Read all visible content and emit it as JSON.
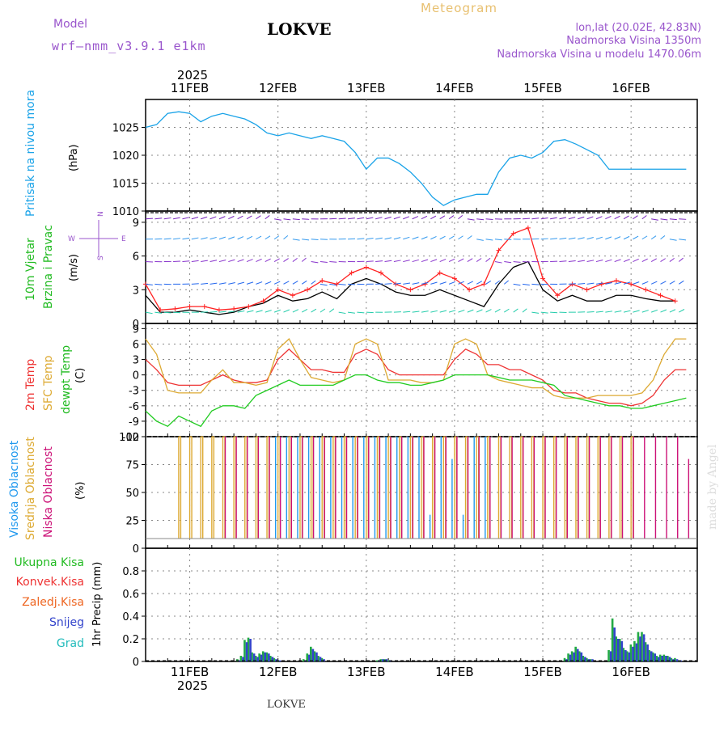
{
  "header": {
    "model_label": "Model",
    "model_name": "wrf—nmm_v3.9.1  e1km",
    "station": "LOKVE",
    "meteogram": "Meteogram",
    "lonlat": "lon,lat (20.02E, 42.83N)",
    "elev": "Nadmorska Visina 1350m",
    "elev_model": "Nadmorska Visina u modelu 1470.06m",
    "watermark": "made by Angel",
    "footer": "LOKVE"
  },
  "colors": {
    "pressure": "#1aa3e8",
    "wind_speed": "#000000",
    "gust": "#ff2222",
    "t2m": "#ee3333",
    "sfc": "#ddaa33",
    "dew": "#22cc22",
    "cloud_high": "#2299ee",
    "cloud_mid": "#ddaa33",
    "cloud_low": "#cc1177",
    "rain_total": "#22aa44",
    "rain_snow": "#3344cc",
    "grid": "#888888"
  },
  "chart_data": [
    {
      "type": "line",
      "id": "pressure",
      "ylabel": "Pritisak na nivou mora",
      "unit": "(hPa)",
      "ylim": [
        1010,
        1030
      ],
      "yticks": [
        "1010",
        "1015",
        "1020",
        "1025"
      ],
      "ytick_values": [
        1010,
        1015,
        1020,
        1025
      ],
      "x_hours": [
        0,
        3,
        6,
        9,
        12,
        15,
        18,
        21,
        24,
        27,
        30,
        33,
        36,
        39,
        42,
        45,
        48,
        51,
        54,
        57,
        60,
        63,
        66,
        69,
        72,
        75,
        78,
        81,
        84,
        87,
        90,
        93,
        96,
        99,
        102,
        105,
        108,
        111,
        114,
        117,
        120,
        123,
        126,
        129,
        132,
        135,
        138,
        141,
        144,
        147
      ],
      "series": [
        {
          "name": "Pritisak na nivou mora",
          "values": [
            1025.0,
            1025.5,
            1027.5,
            1027.8,
            1027.5,
            1026.0,
            1027.0,
            1027.5,
            1027.0,
            1026.5,
            1025.5,
            1024.0,
            1023.5,
            1024.0,
            1023.5,
            1023.0,
            1023.5,
            1023.0,
            1022.5,
            1020.5,
            1017.5,
            1019.5,
            1019.5,
            1018.5,
            1017.0,
            1015.0,
            1012.5,
            1011.0,
            1012.0,
            1012.5,
            1013.0,
            1013.0,
            1017.0,
            1019.5,
            1020.0,
            1019.5,
            1020.5,
            1022.5,
            1022.8,
            1022.0,
            1021.0,
            1020.0,
            1017.5,
            1017.5,
            1017.5,
            1017.5,
            1017.5,
            1017.5,
            1017.5,
            1017.5
          ]
        }
      ]
    },
    {
      "type": "line",
      "id": "wind",
      "ylabel1": "10m Vjetar",
      "ylabel2": "Brzina i Pravac",
      "unit": "(m/s)",
      "compass": [
        "N",
        "W",
        "E",
        "S"
      ],
      "ylim": [
        0,
        10
      ],
      "yticks": [
        "0",
        "3",
        "6",
        "9"
      ],
      "ytick_values": [
        0,
        3,
        6,
        9
      ],
      "x_hours": [
        0,
        4,
        8,
        12,
        16,
        20,
        24,
        28,
        32,
        36,
        40,
        44,
        48,
        52,
        56,
        60,
        64,
        68,
        72,
        76,
        80,
        84,
        88,
        92,
        96,
        100,
        104,
        108,
        112,
        116,
        120,
        124,
        128,
        132,
        136,
        140,
        144
      ],
      "series": [
        {
          "name": "10m Vjetar",
          "values": [
            2.5,
            1.0,
            1.0,
            1.2,
            1.0,
            0.8,
            1.0,
            1.5,
            1.8,
            2.5,
            2.0,
            2.2,
            2.8,
            2.2,
            3.5,
            4.0,
            3.5,
            2.8,
            2.5,
            2.5,
            3.0,
            2.5,
            2.0,
            1.5,
            3.5,
            5.0,
            5.5,
            3.0,
            2.0,
            2.5,
            2.0,
            2.0,
            2.5,
            2.5,
            2.2,
            2.0,
            2.0
          ]
        },
        {
          "name": "gust",
          "values": [
            3.5,
            1.2,
            1.3,
            1.5,
            1.5,
            1.2,
            1.3,
            1.5,
            2.0,
            3.0,
            2.5,
            3.0,
            3.8,
            3.5,
            4.5,
            5.0,
            4.5,
            3.5,
            3.0,
            3.5,
            4.5,
            4.0,
            3.0,
            3.5,
            6.5,
            8.0,
            8.5,
            4.0,
            2.5,
            3.5,
            3.0,
            3.5,
            3.8,
            3.5,
            3.0,
            2.5,
            2.0
          ]
        }
      ]
    },
    {
      "type": "line",
      "id": "temperature",
      "ylabel1": "2m Temp",
      "ylabel2": "SFC Temp",
      "ylabel3": "dewpt Temp",
      "unit": "(C)",
      "ylim": [
        -12,
        10
      ],
      "yticks": [
        "-12",
        "-9",
        "-6",
        "-3",
        "0",
        "3",
        "6",
        "9"
      ],
      "ytick_values": [
        -12,
        -9,
        -6,
        -3,
        0,
        3,
        6,
        9
      ],
      "x_hours": [
        0,
        3,
        6,
        9,
        12,
        15,
        18,
        21,
        24,
        27,
        30,
        33,
        36,
        39,
        42,
        45,
        48,
        51,
        54,
        57,
        60,
        63,
        66,
        69,
        72,
        75,
        78,
        81,
        84,
        87,
        90,
        93,
        96,
        99,
        102,
        105,
        108,
        111,
        114,
        117,
        120,
        123,
        126,
        129,
        132,
        135,
        138,
        141,
        144,
        147
      ],
      "series": [
        {
          "name": "2m Temp",
          "values": [
            3,
            1,
            -1.5,
            -2,
            -2,
            -2,
            -1,
            0,
            -1,
            -1.5,
            -1.5,
            -1,
            3,
            5,
            3,
            1,
            1,
            0.5,
            0.5,
            4,
            5,
            4,
            1,
            0,
            0,
            0,
            0,
            0,
            3,
            5,
            4,
            2,
            2,
            1,
            1,
            0,
            -1,
            -3,
            -3.5,
            -3.5,
            -4.5,
            -5,
            -5.5,
            -5.5,
            -6,
            -5.5,
            -4,
            -1,
            1,
            1
          ]
        },
        {
          "name": "SFC Temp",
          "values": [
            7,
            4,
            -3,
            -3.5,
            -3.5,
            -3.5,
            -1,
            1,
            -1.5,
            -1.5,
            -2,
            -1.5,
            5,
            7,
            3,
            -0.5,
            -1,
            -1.5,
            -1,
            6,
            7,
            6,
            -1,
            -1,
            -1,
            -1.5,
            -1.5,
            -1,
            6,
            7,
            6,
            0,
            -1,
            -1.5,
            -2,
            -2.5,
            -2.5,
            -4,
            -4.5,
            -4.5,
            -4.5,
            -4,
            -4,
            -4,
            -4,
            -3.5,
            -1,
            4,
            7,
            7
          ]
        },
        {
          "name": "dewpt Temp",
          "values": [
            -7,
            -9,
            -10,
            -8,
            -9,
            -10,
            -7,
            -6,
            -6,
            -6.5,
            -4,
            -3,
            -2,
            -1,
            -2,
            -2,
            -2,
            -2,
            -1,
            0,
            0,
            -1,
            -1.5,
            -1.5,
            -2,
            -2,
            -1.5,
            -1,
            0,
            0,
            0,
            0,
            -0.5,
            -1,
            -1,
            -1,
            -1.5,
            -2,
            -4,
            -4.5,
            -5,
            -5.5,
            -6,
            -6,
            -6.5,
            -6.5,
            -6,
            -5.5,
            -5,
            -4.5
          ]
        }
      ]
    },
    {
      "type": "bar",
      "id": "cloud",
      "ylabel1": "Visoka Oblacnost",
      "ylabel2": "Srednja Oblacnost",
      "ylabel3": "Niska Oblacnost",
      "unit": "(%)",
      "ylim": [
        0,
        100
      ],
      "yticks": [
        "0",
        "25",
        "50",
        "75",
        "100"
      ],
      "ytick_values": [
        0,
        25,
        50,
        75,
        100
      ],
      "x_hours": [
        0,
        3,
        6,
        9,
        12,
        15,
        18,
        21,
        24,
        27,
        30,
        33,
        36,
        39,
        42,
        45,
        48,
        51,
        54,
        57,
        60,
        63,
        66,
        69,
        72,
        75,
        78,
        81,
        84,
        87,
        90,
        93,
        96,
        99,
        102,
        105,
        108,
        111,
        114,
        117,
        120,
        123,
        126,
        129,
        132,
        135,
        138,
        141,
        144,
        147
      ],
      "series": [
        {
          "name": "Visoka Oblacnost",
          "values": [
            0,
            0,
            0,
            0,
            0,
            0,
            0,
            0,
            0,
            0,
            0,
            0,
            100,
            100,
            100,
            100,
            100,
            100,
            100,
            100,
            100,
            100,
            100,
            100,
            100,
            100,
            30,
            100,
            80,
            30,
            100,
            100,
            0,
            0,
            0,
            0,
            0,
            0,
            0,
            0,
            0,
            0,
            0,
            0,
            0,
            0,
            0,
            0,
            0,
            0
          ]
        },
        {
          "name": "Srednja Oblacnost",
          "values": [
            0,
            0,
            0,
            100,
            100,
            100,
            100,
            100,
            100,
            100,
            100,
            100,
            100,
            100,
            100,
            100,
            100,
            100,
            100,
            100,
            100,
            100,
            100,
            100,
            100,
            100,
            100,
            100,
            100,
            100,
            100,
            100,
            100,
            100,
            100,
            100,
            100,
            100,
            100,
            100,
            100,
            100,
            100,
            100,
            100,
            0,
            0,
            0,
            0,
            0
          ]
        },
        {
          "name": "Niska Oblacnost",
          "values": [
            0,
            0,
            0,
            0,
            0,
            0,
            0,
            100,
            100,
            100,
            100,
            100,
            100,
            100,
            100,
            100,
            100,
            100,
            100,
            100,
            100,
            100,
            100,
            100,
            100,
            100,
            100,
            100,
            100,
            100,
            100,
            100,
            100,
            100,
            100,
            100,
            100,
            100,
            100,
            100,
            100,
            100,
            100,
            100,
            100,
            100,
            100,
            100,
            100,
            80
          ]
        }
      ]
    },
    {
      "type": "bar",
      "id": "precip",
      "ylabel1": "Ukupna  Kisa",
      "ylabel2": "Konvek.Kisa",
      "ylabel3": "Zaledj.Kisa",
      "ylabel4": "Snijeg",
      "ylabel5": "Grad",
      "unit": "1hr Precip (mm)",
      "ylim": [
        0,
        1.0
      ],
      "yticks": [
        "0",
        "0.2",
        "0.4",
        "0.6",
        "0.8"
      ],
      "ytick_values": [
        0,
        0.2,
        0.4,
        0.6,
        0.8
      ],
      "x_hours": [
        25,
        26,
        27,
        28,
        29,
        30,
        31,
        32,
        33,
        34,
        35,
        36,
        43,
        44,
        45,
        46,
        47,
        48,
        63,
        64,
        65,
        66,
        114,
        115,
        116,
        117,
        118,
        119,
        120,
        121,
        126,
        127,
        128,
        129,
        130,
        131,
        132,
        133,
        134,
        135,
        136,
        137,
        138,
        139,
        140,
        141,
        142,
        143,
        144,
        145
      ],
      "series": [
        {
          "name": "Ukupna  Kisa",
          "values": [
            0.02,
            0.05,
            0.19,
            0.21,
            0.08,
            0.05,
            0.07,
            0.09,
            0.08,
            0.05,
            0.03,
            0.01,
            0.02,
            0.07,
            0.13,
            0.09,
            0.05,
            0.03,
            0.01,
            0.02,
            0.02,
            0.01,
            0.03,
            0.07,
            0.09,
            0.13,
            0.09,
            0.05,
            0.03,
            0.02,
            0.1,
            0.38,
            0.22,
            0.2,
            0.12,
            0.09,
            0.15,
            0.18,
            0.26,
            0.26,
            0.17,
            0.1,
            0.08,
            0.05,
            0.06,
            0.06,
            0.05,
            0.03,
            0.03,
            0.01
          ]
        },
        {
          "name": "Snijeg",
          "values": [
            0.01,
            0.04,
            0.17,
            0.2,
            0.07,
            0.04,
            0.06,
            0.08,
            0.07,
            0.04,
            0.02,
            0.01,
            0.01,
            0.06,
            0.11,
            0.08,
            0.04,
            0.02,
            0.01,
            0.02,
            0.02,
            0.01,
            0.02,
            0.06,
            0.08,
            0.11,
            0.08,
            0.04,
            0.02,
            0.02,
            0.09,
            0.3,
            0.2,
            0.18,
            0.1,
            0.08,
            0.13,
            0.16,
            0.22,
            0.24,
            0.15,
            0.09,
            0.07,
            0.04,
            0.05,
            0.05,
            0.04,
            0.02,
            0.02,
            0.01
          ]
        }
      ]
    }
  ],
  "xaxis": {
    "year": "2025",
    "labels": [
      "11FEB",
      "12FEB",
      "13FEB",
      "14FEB",
      "15FEB",
      "16FEB"
    ],
    "label_hours": [
      12,
      36,
      60,
      84,
      108,
      132
    ],
    "range_hours": [
      0,
      150
    ]
  }
}
